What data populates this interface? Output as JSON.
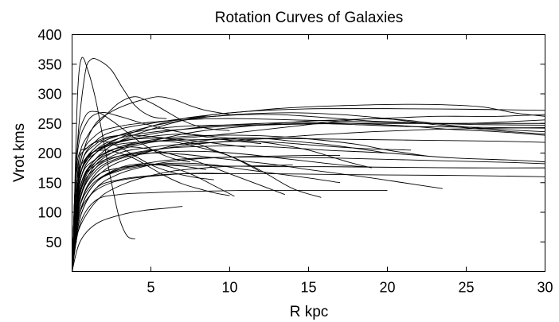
{
  "chart_data": {
    "type": "line",
    "title": "Rotation Curves of Galaxies",
    "xlabel": "R kpc",
    "ylabel": "Vrot kms",
    "xlim": [
      0,
      30
    ],
    "ylim": [
      0,
      400
    ],
    "xticks": [
      5,
      10,
      15,
      20,
      25,
      30
    ],
    "yticks": [
      50,
      100,
      150,
      200,
      250,
      300,
      350,
      400
    ],
    "grid": false,
    "series": [
      {
        "x": [
          0,
          0.15,
          0.35,
          0.6,
          1,
          1.5,
          2,
          2.5,
          3,
          3.5,
          4
        ],
        "y": [
          0,
          120,
          300,
          360,
          340,
          290,
          220,
          150,
          90,
          60,
          55
        ]
      },
      {
        "x": [
          0,
          0.3,
          0.8,
          1.2,
          1.8,
          2.5,
          3.2,
          4,
          5,
          6
        ],
        "y": [
          0,
          200,
          330,
          358,
          355,
          340,
          310,
          280,
          262,
          258
        ]
      },
      {
        "x": [
          0,
          0.3,
          0.8,
          1.5,
          2.5,
          3.5,
          4.5,
          5.5,
          6.5,
          7.5,
          8.5,
          10
        ],
        "y": [
          0,
          150,
          210,
          250,
          270,
          282,
          290,
          295,
          290,
          280,
          272,
          265
        ]
      },
      {
        "x": [
          0,
          0.4,
          1,
          2,
          3,
          4,
          5,
          6,
          7,
          8,
          9,
          10
        ],
        "y": [
          0,
          180,
          230,
          260,
          285,
          295,
          285,
          270,
          255,
          245,
          240,
          238
        ]
      },
      {
        "x": [
          0,
          0.5,
          1.5,
          3,
          5,
          7,
          9,
          11,
          13,
          16,
          20,
          25,
          30
        ],
        "y": [
          0,
          150,
          200,
          225,
          245,
          258,
          265,
          270,
          273,
          275,
          275,
          274,
          272
        ]
      },
      {
        "x": [
          0,
          0.5,
          1.5,
          3,
          5,
          7,
          9,
          11,
          13,
          15,
          17,
          20,
          23,
          26,
          28,
          30
        ],
        "y": [
          0,
          140,
          190,
          220,
          240,
          255,
          265,
          270,
          275,
          278,
          280,
          282,
          282,
          278,
          268,
          262
        ]
      },
      {
        "x": [
          0,
          0.5,
          1.5,
          3,
          5,
          7,
          9,
          11,
          14,
          17,
          20,
          23,
          26,
          30
        ],
        "y": [
          0,
          160,
          210,
          230,
          245,
          255,
          262,
          266,
          268,
          265,
          258,
          248,
          240,
          232
        ]
      },
      {
        "x": [
          0,
          0.6,
          2,
          4,
          6,
          8,
          10,
          12,
          14,
          16,
          18,
          20
        ],
        "y": [
          0,
          120,
          170,
          195,
          210,
          220,
          225,
          225,
          220,
          215,
          208,
          200
        ]
      },
      {
        "x": [
          0,
          0.5,
          1.5,
          3,
          5,
          7,
          10,
          13,
          16,
          20,
          24,
          28,
          30
        ],
        "y": [
          0,
          130,
          175,
          195,
          205,
          210,
          212,
          210,
          205,
          200,
          192,
          188,
          185
        ]
      },
      {
        "x": [
          0,
          0.5,
          1.5,
          3,
          5,
          7,
          9,
          11,
          13,
          15,
          17,
          19,
          21,
          23.5
        ],
        "y": [
          0,
          140,
          180,
          195,
          200,
          198,
          192,
          186,
          180,
          172,
          165,
          158,
          150,
          140
        ]
      },
      {
        "x": [
          0,
          0.5,
          1.5,
          3,
          5,
          7,
          9,
          11,
          13,
          15,
          17
        ],
        "y": [
          0,
          100,
          150,
          170,
          180,
          183,
          180,
          172,
          165,
          158,
          150
        ]
      },
      {
        "x": [
          0,
          0.4,
          1.2,
          2.5,
          4,
          6,
          8,
          10,
          12,
          13.5
        ],
        "y": [
          0,
          120,
          180,
          205,
          210,
          200,
          185,
          165,
          145,
          130
        ]
      },
      {
        "x": [
          0,
          0.4,
          1.2,
          2.5,
          4,
          6,
          8,
          10,
          12,
          14,
          15.8
        ],
        "y": [
          0,
          110,
          170,
          200,
          215,
          220,
          210,
          195,
          170,
          140,
          125
        ]
      },
      {
        "x": [
          0,
          0.5,
          1.5,
          3,
          4.5,
          6,
          7.5,
          9,
          10.3
        ],
        "y": [
          0,
          100,
          150,
          175,
          182,
          178,
          165,
          145,
          127
        ]
      },
      {
        "x": [
          0,
          0.5,
          1.5,
          3,
          4.5,
          6,
          7
        ],
        "y": [
          0,
          50,
          80,
          95,
          103,
          107,
          110
        ]
      },
      {
        "x": [
          0,
          0.5,
          1.5,
          3,
          5,
          7,
          9,
          11,
          13,
          15,
          17,
          20
        ],
        "y": [
          0,
          80,
          120,
          130,
          133,
          135,
          136,
          137,
          137,
          137,
          137,
          137
        ]
      },
      {
        "x": [
          0,
          0.5,
          1.5,
          3,
          5,
          7,
          10,
          13,
          16,
          20,
          25,
          30
        ],
        "y": [
          0,
          90,
          140,
          155,
          162,
          165,
          165,
          165,
          164,
          163,
          162,
          160
        ]
      },
      {
        "x": [
          0,
          0.5,
          1.5,
          3,
          5,
          7,
          10,
          13,
          16,
          20,
          25,
          30
        ],
        "y": [
          0,
          110,
          160,
          175,
          180,
          180,
          178,
          177,
          177,
          176,
          175,
          175
        ]
      },
      {
        "x": [
          0,
          0.3,
          0.8,
          1.5,
          2.5,
          3.5,
          4.5,
          5.5,
          6.5,
          7.5
        ],
        "y": [
          0,
          200,
          260,
          270,
          255,
          235,
          215,
          200,
          190,
          185
        ]
      },
      {
        "x": [
          0,
          0.3,
          1,
          2,
          3,
          4,
          5,
          6,
          7,
          8,
          9,
          10,
          11,
          12
        ],
        "y": [
          0,
          180,
          210,
          225,
          230,
          230,
          228,
          225,
          220,
          215,
          205,
          195,
          182,
          168
        ]
      },
      {
        "x": [
          0,
          0.5,
          1.5,
          3,
          5,
          7,
          9,
          11,
          13,
          15,
          17.5,
          19
        ],
        "y": [
          0,
          160,
          200,
          218,
          228,
          232,
          228,
          222,
          215,
          205,
          185,
          175
        ]
      },
      {
        "x": [
          0,
          0.5,
          1.5,
          3,
          5,
          7,
          9,
          12,
          15,
          18,
          21,
          24,
          27,
          30
        ],
        "y": [
          0,
          150,
          200,
          220,
          232,
          240,
          246,
          250,
          252,
          250,
          246,
          240,
          236,
          230
        ]
      },
      {
        "x": [
          0,
          0.5,
          1.5,
          3,
          5,
          7,
          9,
          12,
          15,
          18,
          21,
          24,
          27,
          30
        ],
        "y": [
          0,
          170,
          215,
          230,
          240,
          245,
          247,
          248,
          250,
          248,
          245,
          244,
          243,
          242
        ]
      },
      {
        "x": [
          0,
          0.5,
          1.5,
          3,
          5,
          7,
          9,
          12,
          15,
          18,
          21,
          24,
          27,
          30
        ],
        "y": [
          0,
          160,
          205,
          215,
          220,
          222,
          223,
          224,
          224,
          223,
          222,
          221,
          220,
          218
        ]
      },
      {
        "x": [
          0,
          0.5,
          1.5,
          3,
          5,
          7,
          9,
          11,
          13,
          15,
          17,
          19,
          21.5
        ],
        "y": [
          0,
          120,
          175,
          200,
          210,
          215,
          218,
          220,
          218,
          214,
          210,
          207,
          205
        ]
      },
      {
        "x": [
          0,
          0.5,
          1.5,
          3,
          5,
          7,
          9,
          11,
          13,
          15,
          17
        ],
        "y": [
          0,
          90,
          140,
          165,
          180,
          188,
          192,
          194,
          195,
          196,
          196
        ]
      },
      {
        "x": [
          0,
          0.5,
          1.5,
          3,
          5,
          7,
          10,
          13,
          16,
          19,
          22,
          25,
          28,
          30
        ],
        "y": [
          0,
          100,
          150,
          172,
          184,
          190,
          193,
          193,
          192,
          190,
          188,
          186,
          184,
          182
        ]
      },
      {
        "x": [
          0,
          0.3,
          1,
          2,
          3,
          4,
          5,
          6,
          7,
          8,
          9
        ],
        "y": [
          0,
          170,
          210,
          220,
          210,
          195,
          180,
          170,
          163,
          158,
          155
        ]
      },
      {
        "x": [
          0,
          0.3,
          1,
          2,
          3,
          4,
          5,
          6,
          7,
          8,
          9,
          10
        ],
        "y": [
          0,
          150,
          195,
          205,
          200,
          190,
          175,
          160,
          148,
          140,
          133,
          128
        ]
      },
      {
        "x": [
          0,
          0.5,
          1.5,
          3,
          5,
          7,
          9,
          11,
          13,
          15,
          18,
          20,
          22.5
        ],
        "y": [
          0,
          130,
          185,
          210,
          222,
          228,
          230,
          230,
          228,
          224,
          215,
          205,
          195
        ]
      },
      {
        "x": [
          0,
          0.5,
          1.5,
          3,
          5,
          7,
          9,
          11,
          14,
          17,
          20,
          23,
          26,
          30
        ],
        "y": [
          0,
          180,
          230,
          245,
          252,
          256,
          258,
          258,
          256,
          254,
          252,
          250,
          248,
          247
        ]
      },
      {
        "x": [
          0,
          0.5,
          1.5,
          3,
          5,
          7,
          9,
          11,
          13,
          15,
          17,
          19,
          21,
          23,
          25,
          27,
          30
        ],
        "y": [
          0,
          170,
          220,
          240,
          250,
          258,
          262,
          265,
          265,
          262,
          258,
          254,
          252,
          250,
          250,
          252,
          256
        ]
      },
      {
        "x": [
          0,
          0.5,
          1.5,
          3,
          5,
          7,
          9,
          11,
          13,
          15,
          17,
          19,
          21,
          23,
          25,
          27,
          30
        ],
        "y": [
          0,
          140,
          185,
          205,
          218,
          225,
          230,
          236,
          242,
          248,
          254,
          258,
          256,
          250,
          244,
          240,
          236
        ]
      },
      {
        "x": [
          0,
          0.5,
          1.5,
          3,
          5,
          7,
          9,
          11,
          13,
          15,
          17,
          19,
          21,
          23,
          25,
          27,
          30
        ],
        "y": [
          0,
          150,
          190,
          210,
          220,
          232,
          240,
          245,
          250,
          254,
          256,
          258,
          260,
          262,
          262,
          262,
          265
        ]
      },
      {
        "x": [
          0,
          0.4,
          1.2,
          2.5,
          4,
          5.5,
          7,
          8.5,
          10
        ],
        "y": [
          0,
          90,
          130,
          150,
          158,
          162,
          165,
          166,
          165
        ]
      },
      {
        "x": [
          0,
          0.4,
          1.2,
          2.5,
          4,
          5.5,
          7,
          8.5
        ],
        "y": [
          0,
          100,
          145,
          168,
          178,
          180,
          178,
          172
        ]
      },
      {
        "x": [
          0,
          0.5,
          1.5,
          3,
          5,
          7,
          9,
          11,
          13,
          15,
          17,
          19
        ],
        "y": [
          0,
          110,
          165,
          190,
          200,
          203,
          202,
          198,
          192,
          186,
          180,
          176
        ]
      },
      {
        "x": [
          0,
          0.3,
          0.9,
          1.8,
          3,
          4.5,
          6,
          7.5,
          9,
          10.5,
          12
        ],
        "y": [
          0,
          190,
          250,
          268,
          262,
          250,
          240,
          232,
          225,
          220,
          216
        ]
      },
      {
        "x": [
          0,
          0.5,
          1.5,
          3,
          5,
          7,
          9,
          11,
          13,
          15,
          17,
          19,
          21,
          23,
          25,
          27,
          30
        ],
        "y": [
          0,
          120,
          170,
          192,
          204,
          212,
          218,
          222,
          226,
          230,
          233,
          236,
          238,
          240,
          241,
          242,
          243
        ]
      },
      {
        "x": [
          0,
          0.5,
          1.5,
          3,
          5,
          7,
          9,
          11,
          13,
          15,
          17,
          19,
          21,
          23,
          25,
          27,
          30
        ],
        "y": [
          0,
          160,
          205,
          225,
          235,
          240,
          244,
          246,
          248,
          249,
          250,
          250,
          250,
          250,
          250,
          250,
          250
        ]
      },
      {
        "x": [
          0,
          0.3,
          1,
          2,
          3.5,
          5,
          6.5,
          8,
          9.5,
          11
        ],
        "y": [
          0,
          140,
          190,
          212,
          222,
          225,
          224,
          220,
          215,
          210
        ]
      },
      {
        "x": [
          0,
          0.3,
          1,
          2,
          3.5,
          5,
          6.5,
          8,
          9.5,
          11,
          12.5,
          14
        ],
        "y": [
          0,
          60,
          100,
          130,
          150,
          162,
          170,
          174,
          177,
          178,
          179,
          180
        ]
      }
    ]
  }
}
